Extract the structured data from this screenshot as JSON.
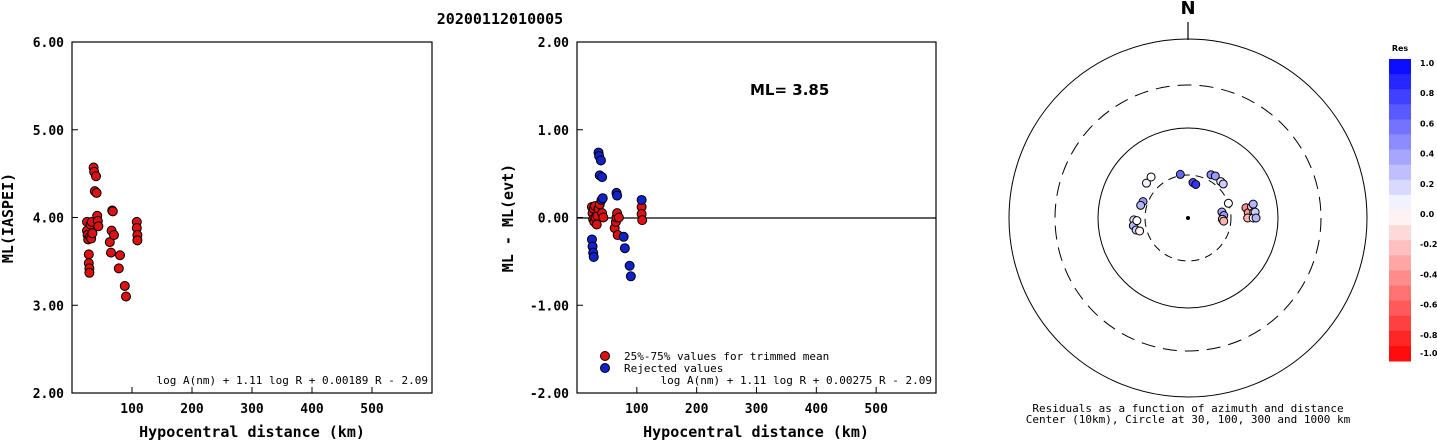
{
  "title": "20200112010005",
  "colors": {
    "accepted": "#dd1111",
    "rejected": "#1122cc"
  },
  "chart_data": [
    {
      "type": "scatter",
      "id": "ml-vs-distance",
      "xlabel": "Hypocentral distance (km)",
      "ylabel": "ML(IASPEI)",
      "xlim": [
        0,
        600
      ],
      "ylim": [
        2.0,
        6.0
      ],
      "x_ticks": [
        "100",
        "200",
        "300",
        "400",
        "500"
      ],
      "y_ticks": [
        "2.00",
        "3.00",
        "4.00",
        "5.00",
        "6.00"
      ],
      "formula": "log A(nm) + 1.11 log R + 0.00189 R - 2.09",
      "series": [
        {
          "points": [
            [
              25,
              3.95
            ],
            [
              25,
              3.85
            ],
            [
              26,
              3.8
            ],
            [
              27,
              3.75
            ],
            [
              28,
              3.58
            ],
            [
              28,
              3.48
            ],
            [
              29,
              3.42
            ],
            [
              29,
              3.37
            ],
            [
              30,
              3.78
            ],
            [
              31,
              3.92
            ],
            [
              32,
              3.76
            ],
            [
              33,
              3.95
            ],
            [
              34,
              3.82
            ],
            [
              36,
              4.57
            ],
            [
              37,
              4.52
            ],
            [
              38,
              4.3
            ],
            [
              40,
              4.47
            ],
            [
              41,
              4.28
            ],
            [
              42,
              4.02
            ],
            [
              43,
              3.96
            ],
            [
              44,
              3.9
            ],
            [
              63,
              3.72
            ],
            [
              65,
              3.6
            ],
            [
              66,
              3.85
            ],
            [
              67,
              4.08
            ],
            [
              68,
              4.07
            ],
            [
              70,
              3.8
            ],
            [
              78,
              3.42
            ],
            [
              80,
              3.57
            ],
            [
              88,
              3.22
            ],
            [
              90,
              3.1
            ],
            [
              108,
              3.95
            ],
            [
              108,
              3.88
            ],
            [
              109,
              3.8
            ],
            [
              109,
              3.74
            ]
          ]
        }
      ]
    },
    {
      "type": "scatter",
      "id": "residual-vs-distance",
      "xlabel": "Hypocentral distance (km)",
      "ylabel": "ML - ML(evt)",
      "xlim": [
        0,
        600
      ],
      "ylim": [
        -2.0,
        2.0
      ],
      "x_ticks": [
        "100",
        "200",
        "300",
        "400",
        "500"
      ],
      "y_ticks": [
        "-2.00",
        "-1.00",
        "0.00",
        "1.00",
        "2.00"
      ],
      "annotation": "ML= 3.85",
      "formula": "log A(nm) + 1.11 log R + 0.00275 R - 2.09",
      "legend": [
        "25%-75% values for trimmed mean",
        "Rejected values"
      ],
      "series": [
        {
          "name": "25%-75% values for trimmed mean",
          "points": [
            [
              25,
              0.12
            ],
            [
              26,
              0.05
            ],
            [
              27,
              -0.02
            ],
            [
              28,
              0.1
            ],
            [
              29,
              -0.05
            ],
            [
              30,
              0.13
            ],
            [
              31,
              0.0
            ],
            [
              33,
              -0.08
            ],
            [
              34,
              0.02
            ],
            [
              36,
              0.1
            ],
            [
              38,
              0.15
            ],
            [
              42,
              0.05
            ],
            [
              44,
              0.0
            ],
            [
              63,
              -0.12
            ],
            [
              65,
              -0.05
            ],
            [
              66,
              0.0
            ],
            [
              67,
              0.05
            ],
            [
              68,
              -0.2
            ],
            [
              70,
              0.0
            ],
            [
              108,
              0.12
            ],
            [
              108,
              0.04
            ],
            [
              109,
              -0.03
            ]
          ]
        },
        {
          "name": "Rejected values",
          "points": [
            [
              25,
              -0.25
            ],
            [
              26,
              -0.33
            ],
            [
              27,
              -0.4
            ],
            [
              28,
              -0.45
            ],
            [
              36,
              0.74
            ],
            [
              37,
              0.7
            ],
            [
              40,
              0.65
            ],
            [
              38,
              0.48
            ],
            [
              42,
              0.46
            ],
            [
              41,
              0.2
            ],
            [
              43,
              0.22
            ],
            [
              66,
              0.28
            ],
            [
              67,
              0.25
            ],
            [
              78,
              -0.22
            ],
            [
              80,
              -0.35
            ],
            [
              88,
              -0.55
            ],
            [
              90,
              -0.67
            ],
            [
              108,
              0.2
            ]
          ]
        }
      ]
    },
    {
      "type": "scatter",
      "id": "azimuth-residuals",
      "north_label": "N",
      "caption": [
        "Residuals as a function of azimuth and distance",
        "Center (10km), Circle at 30, 100, 300 and 1000 km"
      ],
      "colorbar_title": "Res",
      "colorbar_ticks": [
        "1.0",
        "0.8",
        "0.6",
        "0.4",
        "0.2",
        "0.0",
        "-0.2",
        "-0.4",
        "-0.6",
        "-0.8",
        "-1.0"
      ],
      "rings_km": [
        30,
        100,
        300,
        1000
      ],
      "stations": [
        {
          "azimuth": 310,
          "distance_km": 40,
          "residual": 0.05
        },
        {
          "azimuth": 318,
          "distance_km": 41,
          "residual": 0.0
        },
        {
          "azimuth": 290,
          "distance_km": 34,
          "residual": 0.4
        },
        {
          "azimuth": 285,
          "distance_km": 35,
          "residual": 0.3
        },
        {
          "azimuth": 268,
          "distance_km": 40,
          "residual": 0.1
        },
        {
          "azimuth": 262,
          "distance_km": 41,
          "residual": 0.3
        },
        {
          "azimuth": 257,
          "distance_km": 39,
          "residual": 0.2
        },
        {
          "azimuth": 267,
          "distance_km": 37,
          "residual": 0.0
        },
        {
          "azimuth": 255,
          "distance_km": 36,
          "residual": -0.05
        },
        {
          "azimuth": 350,
          "distance_km": 31,
          "residual": 0.6
        },
        {
          "azimuth": 8,
          "distance_km": 25,
          "residual": 0.7
        },
        {
          "azimuth": 13,
          "distance_km": 24,
          "residual": 0.8
        },
        {
          "azimuth": 28,
          "distance_km": 35,
          "residual": 0.45
        },
        {
          "azimuth": 33,
          "distance_km": 36,
          "residual": 0.4
        },
        {
          "azimuth": 42,
          "distance_km": 35,
          "residual": 0.05
        },
        {
          "azimuth": 46,
          "distance_km": 35,
          "residual": 0.2
        },
        {
          "azimuth": 70,
          "distance_km": 30,
          "residual": 0.0
        },
        {
          "azimuth": 80,
          "distance_km": 24,
          "residual": 0.35
        },
        {
          "azimuth": 86,
          "distance_km": 25,
          "residual": 0.4
        },
        {
          "azimuth": 92,
          "distance_km": 24,
          "residual": -0.25
        },
        {
          "azimuth": 95,
          "distance_km": 25,
          "residual": -0.3
        },
        {
          "azimuth": 80,
          "distance_km": 45,
          "residual": -0.45
        },
        {
          "azimuth": 85,
          "distance_km": 47,
          "residual": -0.4
        },
        {
          "azimuth": 90,
          "distance_km": 46,
          "residual": -0.3
        },
        {
          "azimuth": 80,
          "distance_km": 52,
          "residual": -0.2
        },
        {
          "azimuth": 85,
          "distance_km": 54,
          "residual": -0.1
        },
        {
          "azimuth": 90,
          "distance_km": 53,
          "residual": 0.0
        },
        {
          "azimuth": 78,
          "distance_km": 55,
          "residual": 0.3
        },
        {
          "azimuth": 85,
          "distance_km": 56,
          "residual": 0.2
        },
        {
          "azimuth": 90,
          "distance_km": 57,
          "residual": 0.3
        }
      ]
    }
  ]
}
